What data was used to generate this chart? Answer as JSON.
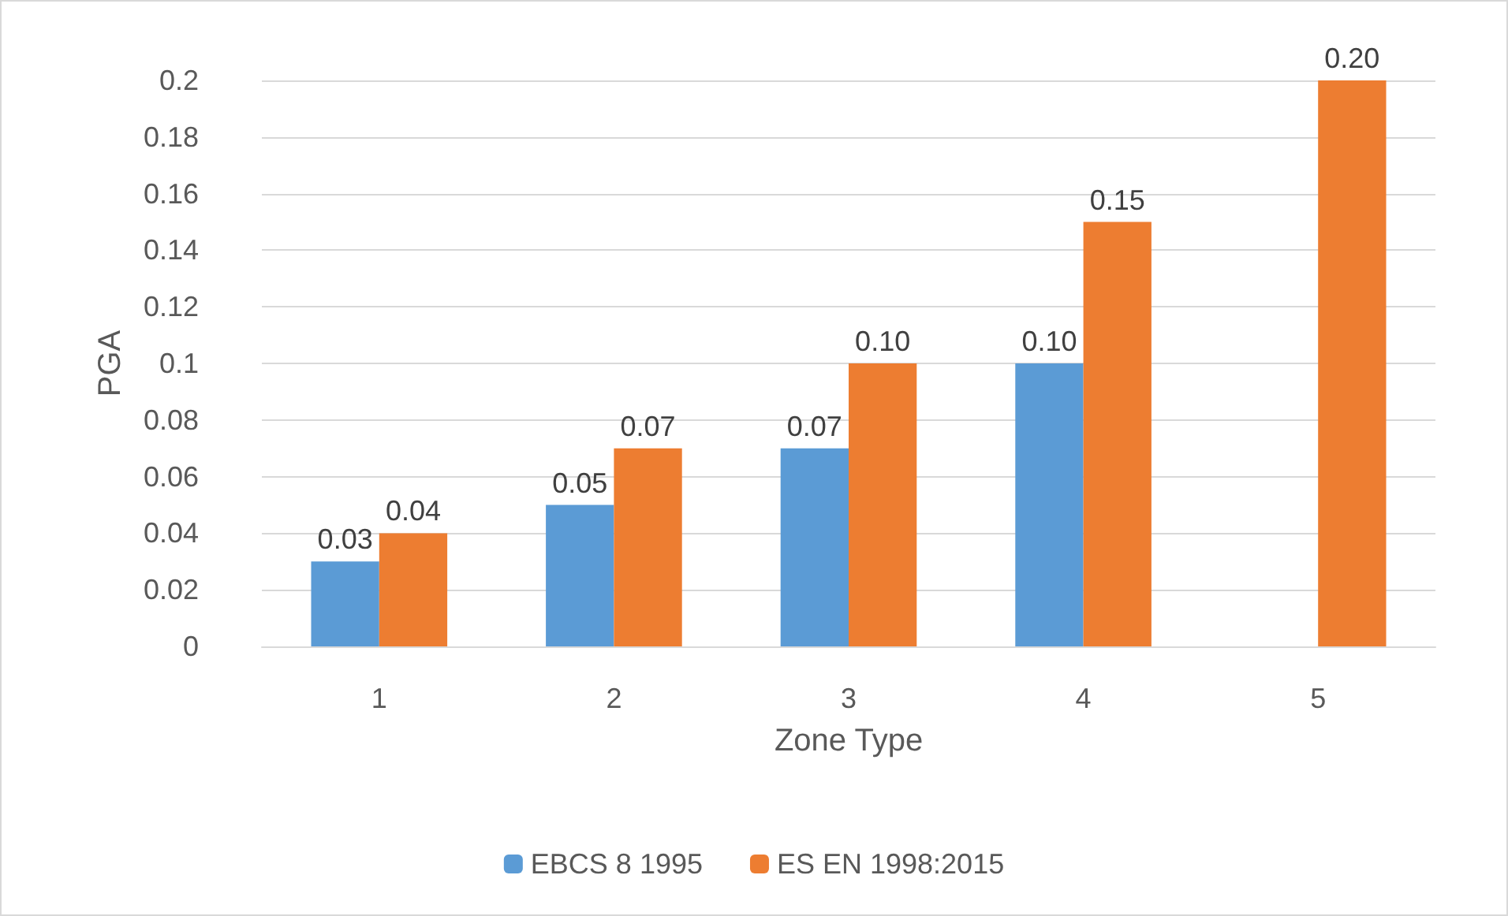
{
  "chart_data": {
    "type": "bar",
    "xlabel": "Zone Type",
    "ylabel": "PGA",
    "categories": [
      "1",
      "2",
      "3",
      "4",
      "5"
    ],
    "series": [
      {
        "name": "EBCS 8 1995",
        "color": "#5b9bd5",
        "values": [
          0.03,
          0.05,
          0.07,
          0.1,
          null
        ],
        "value_labels": [
          "0.03",
          "0.05",
          "0.07",
          "0.10",
          null
        ]
      },
      {
        "name": "ES EN 1998:2015",
        "color": "#ed7d31",
        "values": [
          0.04,
          0.07,
          0.1,
          0.15,
          0.2
        ],
        "value_labels": [
          "0.04",
          "0.07",
          "0.10",
          "0.15",
          "0.20"
        ]
      }
    ],
    "ylim": [
      0,
      0.2
    ],
    "yticks": [
      0,
      0.02,
      0.04,
      0.06,
      0.08,
      0.1,
      0.12,
      0.14,
      0.16,
      0.18,
      0.2
    ],
    "grid": "y",
    "legend": "bottom"
  }
}
